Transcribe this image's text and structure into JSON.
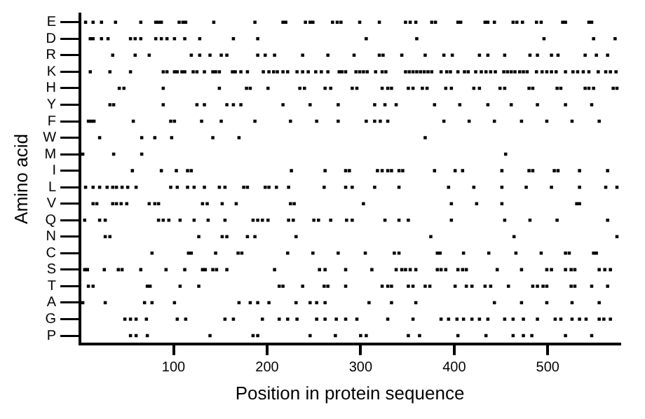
{
  "chart_data": {
    "type": "scatter",
    "orientation": "horizontal",
    "xlabel": "Position in protein sequence",
    "ylabel": "Amino acid",
    "xlim": [
      0,
      577
    ],
    "xticks": [
      100,
      200,
      300,
      400,
      500
    ],
    "categories": [
      "E",
      "D",
      "R",
      "K",
      "H",
      "Y",
      "F",
      "W",
      "M",
      "I",
      "L",
      "V",
      "Q",
      "N",
      "C",
      "S",
      "T",
      "A",
      "G",
      "P"
    ],
    "grid": false,
    "legend": false,
    "color": "#000000",
    "marker": "square",
    "series": [
      {
        "values": [
          6,
          14,
          23,
          38,
          65,
          81,
          84,
          87,
          106,
          110,
          113,
          143,
          187,
          217,
          220,
          241,
          246,
          249,
          270,
          275,
          279,
          299,
          320,
          348,
          353,
          359,
          376,
          380,
          404,
          407,
          433,
          436,
          443,
          463,
          467,
          473,
          488,
          493,
          516,
          519,
          544,
          547
        ],
        "x": [
          "E",
          "E",
          "E",
          "E",
          "E",
          "E",
          "E",
          "E",
          "E",
          "E",
          "E",
          "E",
          "E",
          "E",
          "E",
          "E",
          "E",
          "E",
          "E",
          "E",
          "E",
          "E",
          "E",
          "E",
          "E",
          "E",
          "E",
          "E",
          "E",
          "E",
          "E",
          "E",
          "E",
          "E",
          "E",
          "E",
          "E",
          "E",
          "E",
          "E",
          "E",
          "E"
        ]
      },
      {
        "values": [
          11,
          14,
          23,
          30,
          54,
          59,
          65,
          81,
          87,
          93,
          101,
          112,
          128,
          164,
          190,
          306,
          360,
          496,
          549,
          572
        ],
        "x": [
          "D",
          "D",
          "D",
          "D",
          "D",
          "D",
          "D",
          "D",
          "D",
          "D",
          "D",
          "D",
          "D",
          "D",
          "D",
          "D",
          "D",
          "D",
          "D",
          "D"
        ]
      },
      {
        "values": [
          35,
          59,
          74,
          119,
          128,
          139,
          151,
          157,
          190,
          198,
          208,
          238,
          265,
          293,
          320,
          324,
          344,
          369,
          389,
          398,
          427,
          436,
          454,
          481,
          489,
          504,
          511,
          540,
          552,
          564
        ],
        "x": [
          "R",
          "R",
          "R",
          "R",
          "R",
          "R",
          "R",
          "R",
          "R",
          "R",
          "R",
          "R",
          "R",
          "R",
          "R",
          "R",
          "R",
          "R",
          "R",
          "R",
          "R",
          "R",
          "R",
          "R",
          "R",
          "R",
          "R",
          "R",
          "R",
          "R"
        ]
      },
      {
        "values": [
          11,
          32,
          54,
          89,
          93,
          101,
          104,
          109,
          112,
          121,
          125,
          133,
          142,
          145,
          149,
          163,
          166,
          172,
          179,
          196,
          202,
          207,
          211,
          217,
          222,
          232,
          238,
          244,
          252,
          258,
          265,
          277,
          280,
          284,
          295,
          299,
          303,
          307,
          316,
          323,
          327,
          348,
          352,
          356,
          360,
          364,
          368,
          372,
          376,
          386,
          392,
          396,
          404,
          411,
          415,
          423,
          429,
          434,
          439,
          444,
          453,
          457,
          461,
          465,
          470,
          474,
          478,
          488,
          494,
          499,
          504,
          509,
          519,
          527,
          532,
          538,
          544,
          554,
          562,
          567,
          573
        ],
        "x": [
          "K",
          "K",
          "K",
          "K",
          "K",
          "K",
          "K",
          "K",
          "K",
          "K",
          "K",
          "K",
          "K",
          "K",
          "K",
          "K",
          "K",
          "K",
          "K",
          "K",
          "K",
          "K",
          "K",
          "K",
          "K",
          "K",
          "K",
          "K",
          "K",
          "K",
          "K",
          "K",
          "K",
          "K",
          "K",
          "K",
          "K",
          "K",
          "K",
          "K",
          "K",
          "K",
          "K",
          "K",
          "K",
          "K",
          "K",
          "K",
          "K",
          "K",
          "K",
          "K",
          "K",
          "K",
          "K",
          "K",
          "K",
          "K",
          "K",
          "K",
          "K",
          "K",
          "K",
          "K",
          "K",
          "K",
          "K",
          "K",
          "K",
          "K",
          "K",
          "K",
          "K",
          "K",
          "K",
          "K",
          "K",
          "K",
          "K",
          "K",
          "K"
        ]
      },
      {
        "values": [
          42,
          47,
          89,
          149,
          178,
          182,
          201,
          235,
          240,
          262,
          268,
          291,
          296,
          323,
          329,
          333,
          351,
          356,
          366,
          371,
          391,
          397,
          421,
          427,
          449,
          454,
          480,
          484,
          510,
          514,
          540,
          544,
          549,
          570,
          574
        ],
        "x": [
          "H",
          "H",
          "H",
          "H",
          "H",
          "H",
          "H",
          "H",
          "H",
          "H",
          "H",
          "H",
          "H",
          "H",
          "H",
          "H",
          "H",
          "H",
          "H",
          "H",
          "H",
          "H",
          "H",
          "H",
          "H",
          "H",
          "H",
          "H",
          "H",
          "H",
          "H",
          "H",
          "H",
          "H",
          "H"
        ]
      },
      {
        "values": [
          32,
          36,
          89,
          125,
          133,
          157,
          164,
          172,
          217,
          246,
          276,
          315,
          326,
          338,
          379,
          406,
          436,
          461,
          489,
          519,
          547
        ],
        "x": [
          "Y",
          "Y",
          "Y",
          "Y",
          "Y",
          "Y",
          "Y",
          "Y",
          "Y",
          "Y",
          "Y",
          "Y",
          "Y",
          "Y",
          "Y",
          "Y",
          "Y",
          "Y",
          "Y",
          "Y",
          "Y"
        ]
      },
      {
        "values": [
          9,
          12,
          15,
          57,
          97,
          101,
          130,
          151,
          187,
          225,
          253,
          276,
          306,
          315,
          321,
          329,
          389,
          416,
          443,
          472,
          499,
          526,
          555
        ],
        "x": [
          "F",
          "F",
          "F",
          "F",
          "F",
          "F",
          "F",
          "F",
          "F",
          "F",
          "F",
          "F",
          "F",
          "F",
          "F",
          "F",
          "F",
          "F",
          "F",
          "F",
          "F",
          "F",
          "F"
        ]
      },
      {
        "values": [
          21,
          66,
          80,
          98,
          142,
          170,
          369
        ],
        "x": [
          "W",
          "W",
          "W",
          "W",
          "W",
          "W",
          "W"
        ]
      },
      {
        "values": [
          3,
          36,
          66,
          455
        ],
        "x": [
          "M",
          "M",
          "M",
          "M"
        ]
      },
      {
        "values": [
          56,
          87,
          103,
          115,
          119,
          226,
          262,
          284,
          288,
          318,
          323,
          329,
          333,
          341,
          345,
          379,
          401,
          409,
          451,
          480,
          484,
          507,
          511,
          534,
          564
        ],
        "x": [
          "I",
          "I",
          "I",
          "I",
          "I",
          "I",
          "I",
          "I",
          "I",
          "I",
          "I",
          "I",
          "I",
          "I",
          "I",
          "I",
          "I",
          "I",
          "I",
          "I",
          "I",
          "I",
          "I",
          "I",
          "I"
        ]
      },
      {
        "values": [
          6,
          14,
          21,
          29,
          35,
          39,
          45,
          51,
          60,
          97,
          104,
          115,
          122,
          133,
          149,
          155,
          175,
          179,
          198,
          202,
          210,
          223,
          261,
          284,
          291,
          315,
          341,
          394,
          421,
          451,
          477,
          504,
          534,
          562,
          574
        ],
        "x": [
          "L",
          "L",
          "L",
          "L",
          "L",
          "L",
          "L",
          "L",
          "L",
          "L",
          "L",
          "L",
          "L",
          "L",
          "L",
          "L",
          "L",
          "L",
          "L",
          "L",
          "L",
          "L",
          "L",
          "L",
          "L",
          "L",
          "L",
          "L",
          "L",
          "L",
          "L",
          "L",
          "L",
          "L",
          "L"
        ]
      },
      {
        "values": [
          14,
          18,
          35,
          39,
          44,
          50,
          74,
          80,
          84,
          131,
          136,
          152,
          167,
          225,
          229,
          303,
          397,
          424,
          451,
          531,
          534
        ],
        "x": [
          "V",
          "V",
          "V",
          "V",
          "V",
          "V",
          "V",
          "V",
          "V",
          "V",
          "V",
          "V",
          "V",
          "V",
          "V",
          "V",
          "V",
          "V",
          "V",
          "V",
          "V"
        ]
      },
      {
        "values": [
          5,
          21,
          27,
          84,
          89,
          95,
          107,
          122,
          137,
          155,
          185,
          190,
          195,
          201,
          223,
          228,
          250,
          255,
          268,
          285,
          291,
          326,
          341,
          351,
          397,
          454,
          481,
          510,
          564
        ],
        "x": [
          "Q",
          "Q",
          "Q",
          "Q",
          "Q",
          "Q",
          "Q",
          "Q",
          "Q",
          "Q",
          "Q",
          "Q",
          "Q",
          "Q",
          "Q",
          "Q",
          "Q",
          "Q",
          "Q",
          "Q",
          "Q",
          "Q",
          "Q",
          "Q",
          "Q",
          "Q",
          "Q",
          "Q",
          "Q"
        ]
      },
      {
        "values": [
          27,
          32,
          127,
          152,
          157,
          179,
          187,
          231,
          375,
          464,
          574
        ],
        "x": [
          "N",
          "N",
          "N",
          "N",
          "N",
          "N",
          "N",
          "N",
          "N",
          "N",
          "N"
        ]
      },
      {
        "values": [
          77,
          116,
          119,
          145,
          169,
          173,
          222,
          249,
          276,
          305,
          336,
          341,
          382,
          385,
          410,
          437,
          466,
          493,
          519,
          523,
          549,
          552
        ],
        "x": [
          "C",
          "C",
          "C",
          "C",
          "C",
          "C",
          "C",
          "C",
          "C",
          "C",
          "C",
          "C",
          "C",
          "C",
          "C",
          "C",
          "C",
          "C",
          "C",
          "C",
          "C",
          "C"
        ]
      },
      {
        "values": [
          5,
          8,
          26,
          41,
          45,
          65,
          92,
          112,
          131,
          134,
          142,
          146,
          157,
          208,
          256,
          262,
          284,
          312,
          338,
          344,
          348,
          353,
          359,
          382,
          386,
          391,
          404,
          409,
          413,
          446,
          472,
          499,
          504,
          519,
          525,
          529,
          555,
          561,
          567
        ],
        "x": [
          "S",
          "S",
          "S",
          "S",
          "S",
          "S",
          "S",
          "S",
          "S",
          "S",
          "S",
          "S",
          "S",
          "S",
          "S",
          "S",
          "S",
          "S",
          "S",
          "S",
          "S",
          "S",
          "S",
          "S",
          "S",
          "S",
          "S",
          "S",
          "S",
          "S",
          "S",
          "S",
          "S",
          "S",
          "S",
          "S",
          "S",
          "S",
          "S"
        ]
      },
      {
        "values": [
          9,
          14,
          72,
          75,
          107,
          127,
          213,
          217,
          238,
          261,
          265,
          284,
          323,
          329,
          333,
          351,
          356,
          369,
          374,
          401,
          413,
          419,
          433,
          439,
          458,
          484,
          489,
          495,
          499,
          525,
          529,
          547,
          564
        ],
        "x": [
          "T",
          "T",
          "T",
          "T",
          "T",
          "T",
          "T",
          "T",
          "T",
          "T",
          "T",
          "T",
          "T",
          "T",
          "T",
          "T",
          "T",
          "T",
          "T",
          "T",
          "T",
          "T",
          "T",
          "T",
          "T",
          "T",
          "T",
          "T",
          "T",
          "T",
          "T",
          "T",
          "T"
        ]
      },
      {
        "values": [
          3,
          27,
          69,
          77,
          101,
          170,
          182,
          190,
          202,
          231,
          246,
          253,
          262,
          309,
          333,
          359,
          443,
          472,
          499,
          526,
          555
        ],
        "x": [
          "A",
          "A",
          "A",
          "A",
          "A",
          "A",
          "A",
          "A",
          "A",
          "A",
          "A",
          "A",
          "A",
          "A",
          "A",
          "A",
          "A",
          "A",
          "A",
          "A",
          "A"
        ]
      },
      {
        "values": [
          48,
          54,
          60,
          71,
          104,
          113,
          155,
          164,
          195,
          213,
          222,
          232,
          253,
          262,
          274,
          284,
          296,
          329,
          356,
          386,
          394,
          403,
          410,
          419,
          427,
          436,
          454,
          463,
          474,
          489,
          508,
          514,
          526,
          534,
          541,
          555,
          560,
          567
        ],
        "x": [
          "G",
          "G",
          "G",
          "G",
          "G",
          "G",
          "G",
          "G",
          "G",
          "G",
          "G",
          "G",
          "G",
          "G",
          "G",
          "G",
          "G",
          "G",
          "G",
          "G",
          "G",
          "G",
          "G",
          "G",
          "G",
          "G",
          "G",
          "G",
          "G",
          "G",
          "G",
          "G",
          "G",
          "G",
          "G",
          "G",
          "G",
          "G"
        ]
      },
      {
        "values": [
          54,
          60,
          72,
          139,
          185,
          190,
          246,
          273,
          300,
          306,
          351,
          363,
          404,
          434,
          463,
          474,
          483,
          519,
          547
        ],
        "x": [
          "P",
          "P",
          "P",
          "P",
          "P",
          "P",
          "P",
          "P",
          "P",
          "P",
          "P",
          "P",
          "P",
          "P",
          "P",
          "P",
          "P",
          "P",
          "P"
        ]
      }
    ]
  }
}
